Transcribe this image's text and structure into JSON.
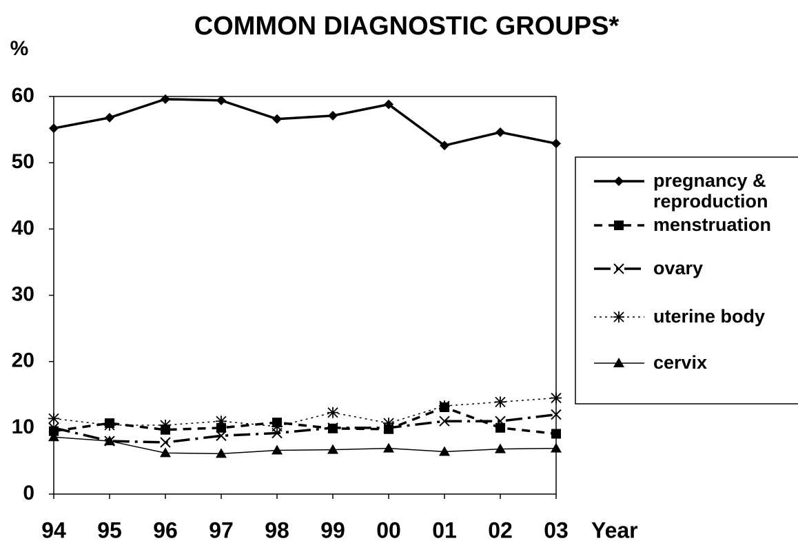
{
  "chart_data": {
    "type": "line",
    "title": "COMMON DIAGNOSTIC GROUPS*",
    "y_label": "%",
    "x_label": "Year",
    "categories": [
      "94",
      "95",
      "96",
      "97",
      "98",
      "99",
      "00",
      "01",
      "02",
      "03"
    ],
    "series": [
      {
        "name": "pregnancy & reproduction",
        "color": "#000000",
        "values": [
          55.2,
          56.8,
          59.6,
          59.4,
          56.6,
          57.1,
          58.8,
          52.6,
          54.6,
          52.9
        ]
      },
      {
        "name": "menstruation",
        "color": "#000000",
        "values": [
          9.5,
          10.7,
          9.7,
          10.0,
          10.8,
          9.9,
          9.8,
          13.1,
          10.0,
          9.1
        ]
      },
      {
        "name": "ovary",
        "color": "#000000",
        "values": [
          10.0,
          8.0,
          7.8,
          8.8,
          9.2,
          10.0,
          10.0,
          11.0,
          11.0,
          12.0
        ]
      },
      {
        "name": "uterine body",
        "color": "#000000",
        "values": [
          11.4,
          10.4,
          10.4,
          11.0,
          10.2,
          12.3,
          10.7,
          13.3,
          13.9,
          14.5
        ]
      },
      {
        "name": "cervix",
        "color": "#000000",
        "values": [
          8.6,
          8.0,
          6.2,
          6.1,
          6.6,
          6.7,
          6.9,
          6.4,
          6.8,
          6.9
        ]
      }
    ],
    "ylim": [
      0,
      60
    ],
    "yticks": [
      0,
      10,
      20,
      30,
      40,
      50,
      60
    ],
    "grid": false,
    "legend": "right"
  }
}
